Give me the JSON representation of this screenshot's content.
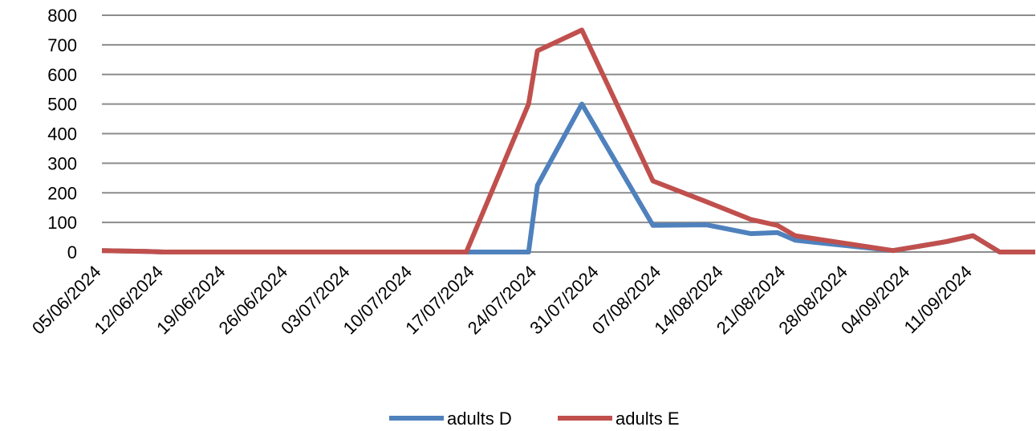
{
  "chart_data": {
    "type": "line",
    "x_tick_labels": [
      "05/06/2024",
      "12/06/2024",
      "19/06/2024",
      "26/06/2024",
      "03/07/2024",
      "10/07/2024",
      "17/07/2024",
      "24/07/2024",
      "31/07/2024",
      "07/08/2024",
      "14/08/2024",
      "21/08/2024",
      "28/08/2024",
      "04/09/2024",
      "11/09/2024"
    ],
    "xlim": [
      "2024-06-05",
      "2024-09-18"
    ],
    "ylim": [
      0,
      800
    ],
    "y_ticks": [
      0,
      100,
      200,
      300,
      400,
      500,
      600,
      700,
      800
    ],
    "grid": true,
    "legend_position": "bottom",
    "series": [
      {
        "name": "adults D",
        "color": "#4f81bd",
        "points": [
          [
            "2024-06-05",
            5
          ],
          [
            "2024-06-10",
            2
          ],
          [
            "2024-06-12",
            0
          ],
          [
            "2024-07-16",
            0
          ],
          [
            "2024-07-23",
            0
          ],
          [
            "2024-07-24",
            225
          ],
          [
            "2024-07-29",
            500
          ],
          [
            "2024-08-06",
            90
          ],
          [
            "2024-08-12",
            92
          ],
          [
            "2024-08-17",
            62
          ],
          [
            "2024-08-20",
            66
          ],
          [
            "2024-08-22",
            40
          ],
          [
            "2024-09-02",
            5
          ],
          [
            "2024-09-08",
            35
          ],
          [
            "2024-09-11",
            55
          ],
          [
            "2024-09-14",
            0
          ],
          [
            "2024-09-18",
            0
          ]
        ]
      },
      {
        "name": "adults E",
        "color": "#c0504d",
        "points": [
          [
            "2024-06-05",
            5
          ],
          [
            "2024-06-10",
            2
          ],
          [
            "2024-06-12",
            0
          ],
          [
            "2024-07-16",
            0
          ],
          [
            "2024-07-23",
            500
          ],
          [
            "2024-07-24",
            680
          ],
          [
            "2024-07-29",
            750
          ],
          [
            "2024-08-06",
            240
          ],
          [
            "2024-08-12",
            170
          ],
          [
            "2024-08-17",
            110
          ],
          [
            "2024-08-20",
            90
          ],
          [
            "2024-08-22",
            55
          ],
          [
            "2024-09-02",
            5
          ],
          [
            "2024-09-08",
            35
          ],
          [
            "2024-09-11",
            55
          ],
          [
            "2024-09-14",
            0
          ],
          [
            "2024-09-18",
            0
          ]
        ]
      }
    ]
  }
}
